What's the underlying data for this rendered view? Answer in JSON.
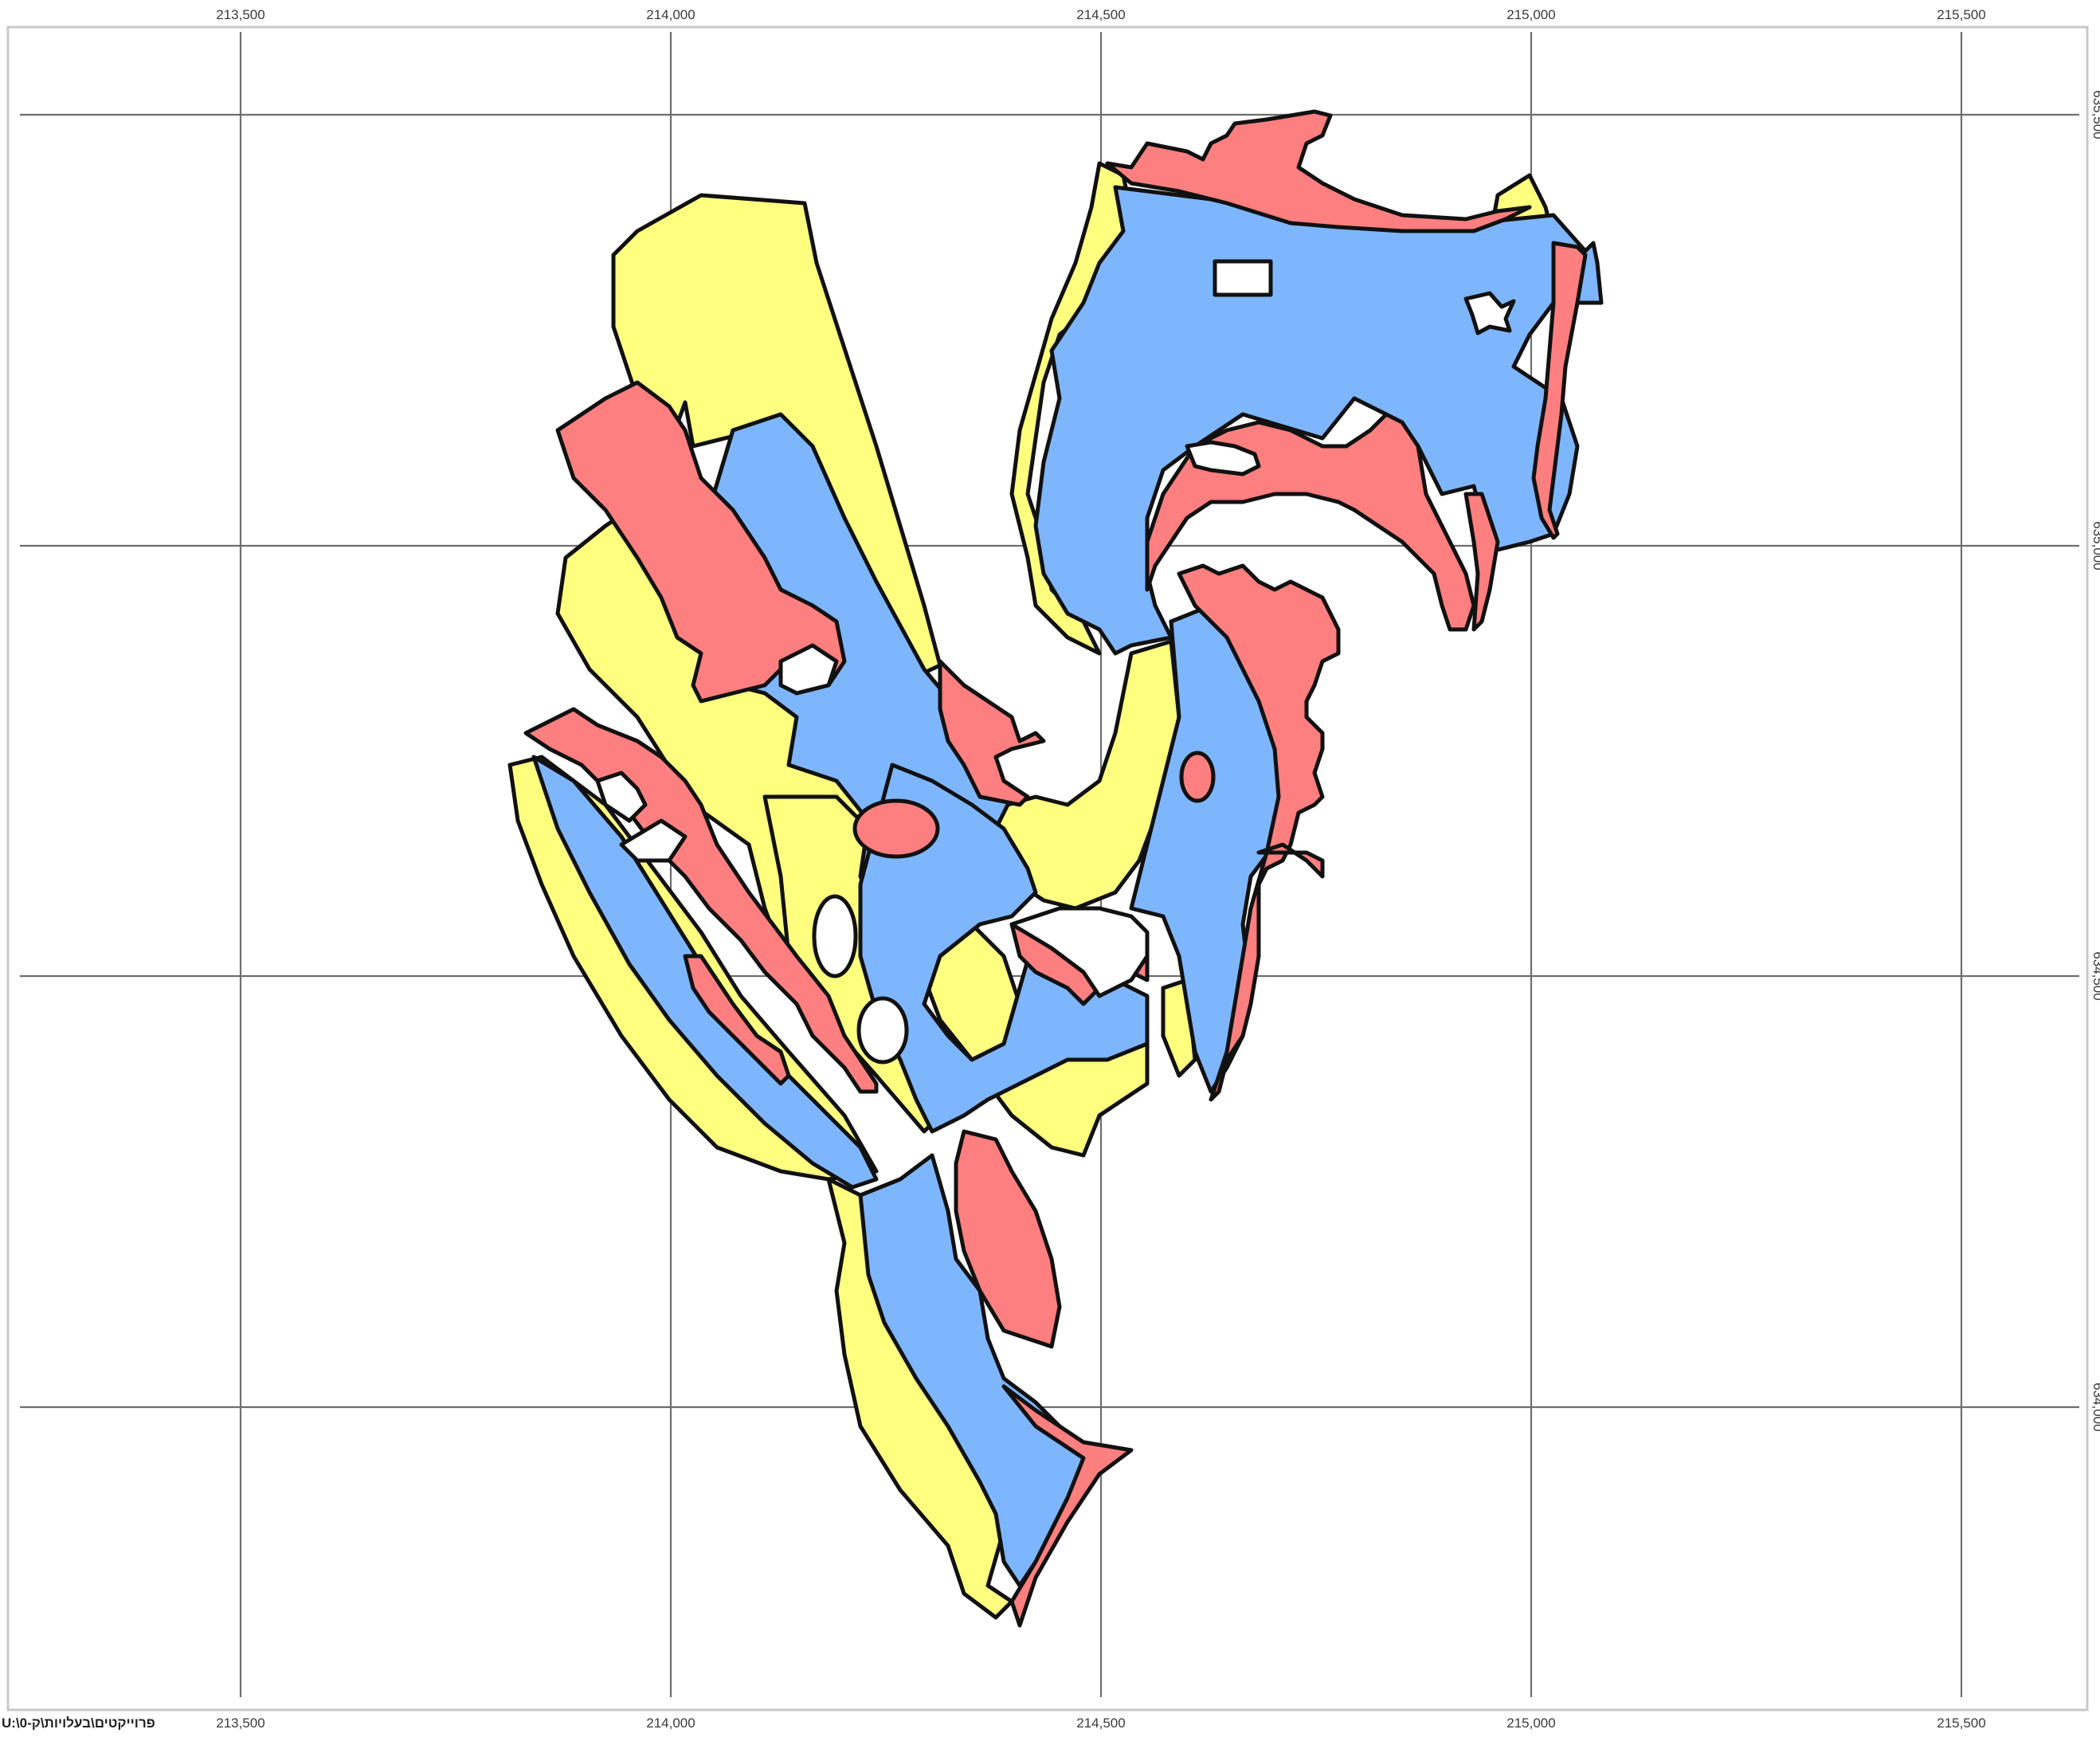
{
  "map": {
    "x_ticks_top": [
      "213,500",
      "214,000",
      "214,500",
      "215,000",
      "215,500"
    ],
    "x_ticks_bottom": [
      "213,500",
      "214,000",
      "214,500",
      "215,000",
      "215,500"
    ],
    "y_ticks_right": [
      "635,500",
      "635,000",
      "634,500",
      "634,000"
    ],
    "path_caption": "U:\\0-פרוייקטים\\בעלויות\\ק",
    "colors": {
      "yellow": "#fefe7f",
      "blue": "#7eb6fe",
      "red": "#fe7f7f",
      "outline": "#111111",
      "grid": "#6e6e6e"
    },
    "zones": [
      "yellow-zone",
      "blue-zone",
      "red-zone"
    ]
  }
}
